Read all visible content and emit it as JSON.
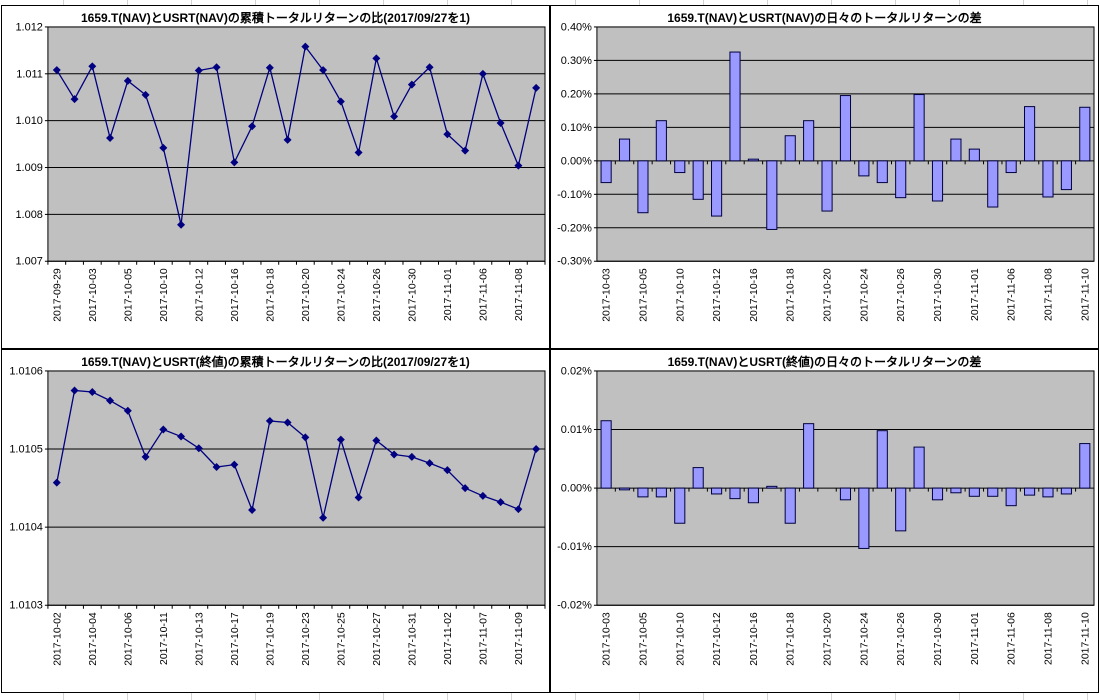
{
  "app": {
    "context": "excel-embedded-chart-sheet",
    "background": "#ffffff",
    "cell_gridline_color": "#d4d4d4"
  },
  "styles": {
    "plot_bg": "#c0c0c0",
    "chart_bg": "#ffffff",
    "chart_border": "#000000",
    "gridline_color": "#000000",
    "line_color": "#000080",
    "marker_color": "#000080",
    "bar_fill": "#9999ff",
    "bar_border": "#000040",
    "text_color": "#000000"
  },
  "chart_data": [
    {
      "id": "cumulative-ratio-nav",
      "position": "top-left",
      "type": "line",
      "title": "1659.T(NAV)とUSRT(NAV)の累積トータルリターンの比(2017/09/27を1)",
      "ylim": [
        1.007,
        1.012
      ],
      "yticks": [
        "1.012",
        "1.011",
        "1.010",
        "1.009",
        "1.008",
        "1.007"
      ],
      "label_every": 2,
      "grid": true,
      "legend": "none",
      "categories": [
        "2017-09-29",
        "2017-10-02",
        "2017-10-03",
        "2017-10-04",
        "2017-10-05",
        "2017-10-06",
        "2017-10-10",
        "2017-10-11",
        "2017-10-12",
        "2017-10-13",
        "2017-10-16",
        "2017-10-17",
        "2017-10-18",
        "2017-10-19",
        "2017-10-20",
        "2017-10-23",
        "2017-10-24",
        "2017-10-25",
        "2017-10-26",
        "2017-10-27",
        "2017-10-30",
        "2017-10-31",
        "2017-11-01",
        "2017-11-02",
        "2017-11-06",
        "2017-11-07",
        "2017-11-08",
        "2017-11-09"
      ],
      "values": [
        1.01108,
        1.01046,
        1.01116,
        1.00963,
        1.01085,
        1.01055,
        1.00942,
        1.00778,
        1.01107,
        1.01114,
        1.00911,
        1.00988,
        1.01113,
        1.00959,
        1.01158,
        1.01108,
        1.01041,
        1.00932,
        1.01133,
        1.01009,
        1.01077,
        1.01114,
        1.00971,
        1.00936,
        1.011,
        1.00995,
        1.00904,
        1.0107
      ]
    },
    {
      "id": "daily-diff-nav",
      "position": "top-right",
      "type": "bar",
      "title": "1659.T(NAV)とUSRT(NAV)の日々のトータルリターンの差",
      "value_unit": "percent",
      "ylim": [
        -0.3,
        0.4
      ],
      "yticks": [
        "0.40%",
        "0.30%",
        "0.20%",
        "0.10%",
        "0.00%",
        "-0.10%",
        "-0.20%",
        "-0.30%"
      ],
      "label_every": 2,
      "grid": true,
      "legend": "none",
      "categories": [
        "2017-10-03",
        "2017-10-04",
        "2017-10-05",
        "2017-10-06",
        "2017-10-10",
        "2017-10-11",
        "2017-10-12",
        "2017-10-13",
        "2017-10-16",
        "2017-10-17",
        "2017-10-18",
        "2017-10-19",
        "2017-10-20",
        "2017-10-23",
        "2017-10-24",
        "2017-10-25",
        "2017-10-26",
        "2017-10-27",
        "2017-10-30",
        "2017-10-31",
        "2017-11-01",
        "2017-11-02",
        "2017-11-06",
        "2017-11-07",
        "2017-11-08",
        "2017-11-09",
        "2017-11-10"
      ],
      "values": [
        -0.065,
        0.065,
        -0.155,
        0.12,
        -0.035,
        -0.115,
        -0.165,
        0.325,
        0.005,
        -0.205,
        0.075,
        0.12,
        -0.15,
        0.195,
        -0.045,
        -0.065,
        -0.11,
        0.198,
        -0.12,
        0.065,
        0.035,
        -0.138,
        -0.035,
        0.162,
        -0.108,
        -0.086,
        0.16
      ]
    },
    {
      "id": "cumulative-ratio-close",
      "position": "bottom-left",
      "type": "line",
      "title": "1659.T(NAV)とUSRT(終値)の累積トータルリターンの比(2017/09/27を1)",
      "ylim": [
        1.0103,
        1.0106
      ],
      "yticks": [
        "1.0106",
        "1.0105",
        "1.0104",
        "1.0103"
      ],
      "label_every": 2,
      "grid": true,
      "legend": "none",
      "categories": [
        "2017-10-02",
        "2017-10-03",
        "2017-10-04",
        "2017-10-05",
        "2017-10-06",
        "2017-10-10",
        "2017-10-11",
        "2017-10-12",
        "2017-10-13",
        "2017-10-16",
        "2017-10-17",
        "2017-10-18",
        "2017-10-19",
        "2017-10-20",
        "2017-10-23",
        "2017-10-24",
        "2017-10-25",
        "2017-10-26",
        "2017-10-27",
        "2017-10-30",
        "2017-10-31",
        "2017-11-01",
        "2017-11-02",
        "2017-11-06",
        "2017-11-07",
        "2017-11-08",
        "2017-11-09",
        "2017-11-10"
      ],
      "values": [
        1.010457,
        1.010575,
        1.010573,
        1.010562,
        1.010549,
        1.01049,
        1.010525,
        1.010516,
        1.010501,
        1.010477,
        1.01048,
        1.010422,
        1.010536,
        1.010534,
        1.010515,
        1.010412,
        1.010512,
        1.010438,
        1.010511,
        1.010493,
        1.01049,
        1.010482,
        1.010473,
        1.01045,
        1.01044,
        1.010432,
        1.010423,
        1.0105
      ]
    },
    {
      "id": "daily-diff-close",
      "position": "bottom-right",
      "type": "bar",
      "title": "1659.T(NAV)とUSRT(終値)の日々のトータルリターンの差",
      "value_unit": "percent",
      "ylim": [
        -0.02,
        0.02
      ],
      "yticks": [
        "0.02%",
        "0.01%",
        "0.00%",
        "-0.01%",
        "-0.02%"
      ],
      "label_every": 2,
      "grid": true,
      "legend": "none",
      "categories": [
        "2017-10-03",
        "2017-10-04",
        "2017-10-05",
        "2017-10-06",
        "2017-10-10",
        "2017-10-11",
        "2017-10-12",
        "2017-10-13",
        "2017-10-16",
        "2017-10-17",
        "2017-10-18",
        "2017-10-19",
        "2017-10-20",
        "2017-10-23",
        "2017-10-24",
        "2017-10-25",
        "2017-10-26",
        "2017-10-27",
        "2017-10-30",
        "2017-10-31",
        "2017-11-01",
        "2017-11-02",
        "2017-11-06",
        "2017-11-07",
        "2017-11-08",
        "2017-11-09",
        "2017-11-10"
      ],
      "values": [
        0.0115,
        -0.0003,
        -0.0015,
        -0.0015,
        -0.006,
        0.0035,
        -0.001,
        -0.0018,
        -0.0025,
        0.0003,
        -0.006,
        0.011,
        0.0,
        -0.002,
        -0.0103,
        0.0098,
        -0.0073,
        0.007,
        -0.002,
        -0.0008,
        -0.0014,
        -0.0014,
        -0.003,
        -0.0012,
        -0.0015,
        -0.001,
        0.0076
      ]
    }
  ]
}
